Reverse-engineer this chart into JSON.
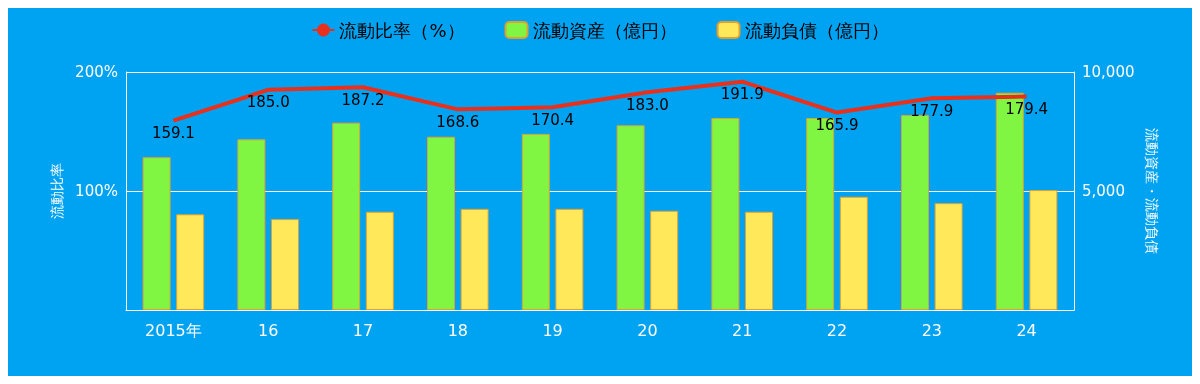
{
  "chart_data": {
    "type": "bar",
    "ylabel": "流動比率",
    "y2label": "流動資産・流動負債",
    "categories": [
      "2015年",
      "16",
      "17",
      "18",
      "19",
      "20",
      "21",
      "22",
      "23",
      "24"
    ],
    "series": [
      {
        "name": "流動比率（%）",
        "type": "line",
        "color": "#e8301c",
        "values": [
          159.1,
          185.0,
          187.2,
          168.6,
          170.4,
          183.0,
          191.9,
          165.9,
          177.9,
          179.4
        ],
        "value_labels": [
          "159.1",
          "185.0",
          "187.2",
          "168.6",
          "170.4",
          "183.0",
          "191.9",
          "165.9",
          "177.9",
          "179.4"
        ],
        "marker": "none"
      },
      {
        "name": "流動資産（億円）",
        "axis": "y2",
        "color": "#80f542",
        "values": [
          6420,
          7170,
          7870,
          7280,
          7400,
          7760,
          8070,
          8070,
          8190,
          9130
        ]
      },
      {
        "name": "流動負債（億円）",
        "axis": "y2",
        "color": "#ffe95a",
        "values": [
          4020,
          3820,
          4130,
          4250,
          4250,
          4170,
          4130,
          4760,
          4490,
          5040
        ]
      }
    ],
    "ylim": [
      0,
      200
    ],
    "yticks": [
      {
        "value": 0,
        "label": null
      },
      {
        "value": 100,
        "label": "100%"
      },
      {
        "value": 200,
        "label": "200%"
      }
    ],
    "y2lim": [
      0,
      10000
    ],
    "y2ticks": [
      {
        "value": 0,
        "label": null
      },
      {
        "value": 5000,
        "label": "5,000"
      },
      {
        "value": 10000,
        "label": "10,000"
      }
    ],
    "grid": "y",
    "legend": "top"
  }
}
